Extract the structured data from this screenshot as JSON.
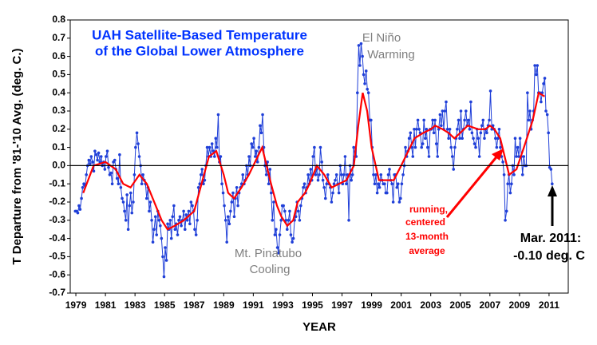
{
  "chart_data": {
    "type": "line",
    "title_lines": [
      "UAH Satellite-Based Temperature",
      "of the Global Lower Atmosphere"
    ],
    "x_label": "YEAR",
    "y_label": "T Departure from '81-'10 Avg. (deg. C.)",
    "annotations": {
      "el_nino": [
        "El Niño",
        "Warming"
      ],
      "pinatubo": [
        "Mt. Pinatubo",
        "Cooling"
      ],
      "running": [
        "running,",
        "centered",
        "13-month",
        "average"
      ],
      "latest": [
        "Mar. 2011:",
        "-0.10 deg. C"
      ]
    },
    "xlim": [
      1978.62,
      2012.3
    ],
    "ylim": [
      -0.7,
      0.8
    ],
    "xticks": [
      1979,
      1981,
      1983,
      1985,
      1987,
      1989,
      1991,
      1993,
      1995,
      1997,
      1999,
      2001,
      2003,
      2005,
      2007,
      2009,
      2011
    ],
    "yticks": [
      0.8,
      0.7,
      0.6,
      0.5,
      0.4,
      0.3,
      0.2,
      0.1,
      {
        "value": 0,
        "label": "0.0"
      },
      -0.1,
      -0.2,
      -0.3,
      -0.4,
      -0.5,
      -0.6,
      -0.7
    ],
    "zero_line": true,
    "series": [
      {
        "name": "monthly",
        "color": "#1f3fd8",
        "markers": true,
        "x": [
          1978.96,
          1979.04,
          1979.13,
          1979.21,
          1979.29,
          1979.38,
          1979.46,
          1979.54,
          1979.63,
          1979.71,
          1979.79,
          1979.88,
          1979.96,
          1980.04,
          1980.13,
          1980.21,
          1980.29,
          1980.38,
          1980.46,
          1980.54,
          1980.63,
          1980.71,
          1980.79,
          1980.88,
          1980.96,
          1981.04,
          1981.13,
          1981.21,
          1981.29,
          1981.38,
          1981.46,
          1981.54,
          1981.63,
          1981.71,
          1981.79,
          1981.88,
          1981.96,
          1982.04,
          1982.13,
          1982.21,
          1982.29,
          1982.38,
          1982.46,
          1982.54,
          1982.63,
          1982.71,
          1982.79,
          1982.88,
          1982.96,
          1983.04,
          1983.13,
          1983.21,
          1983.29,
          1983.38,
          1983.46,
          1983.54,
          1983.63,
          1983.71,
          1983.79,
          1983.88,
          1983.96,
          1984.04,
          1984.13,
          1984.21,
          1984.29,
          1984.38,
          1984.46,
          1984.54,
          1984.63,
          1984.71,
          1984.79,
          1984.88,
          1984.96,
          1985.04,
          1985.13,
          1985.21,
          1985.29,
          1985.38,
          1985.46,
          1985.54,
          1985.63,
          1985.71,
          1985.79,
          1985.88,
          1985.96,
          1986.04,
          1986.13,
          1986.21,
          1986.29,
          1986.38,
          1986.46,
          1986.54,
          1986.63,
          1986.71,
          1986.79,
          1986.88,
          1986.96,
          1987.04,
          1987.13,
          1987.21,
          1987.29,
          1987.38,
          1987.46,
          1987.54,
          1987.63,
          1987.71,
          1987.79,
          1987.88,
          1987.96,
          1988.04,
          1988.13,
          1988.21,
          1988.29,
          1988.38,
          1988.46,
          1988.54,
          1988.63,
          1988.71,
          1988.79,
          1988.88,
          1988.96,
          1989.04,
          1989.13,
          1989.21,
          1989.29,
          1989.38,
          1989.46,
          1989.54,
          1989.63,
          1989.71,
          1989.79,
          1989.88,
          1989.96,
          1990.04,
          1990.13,
          1990.21,
          1990.29,
          1990.38,
          1990.46,
          1990.54,
          1990.63,
          1990.71,
          1990.79,
          1990.88,
          1990.96,
          1991.04,
          1991.13,
          1991.21,
          1991.29,
          1991.38,
          1991.46,
          1991.54,
          1991.63,
          1991.71,
          1991.79,
          1991.88,
          1991.96,
          1992.04,
          1992.13,
          1992.21,
          1992.29,
          1992.38,
          1992.46,
          1992.54,
          1992.63,
          1992.71,
          1992.79,
          1992.88,
          1992.96,
          1993.04,
          1993.13,
          1993.21,
          1993.29,
          1993.38,
          1993.46,
          1993.54,
          1993.63,
          1993.71,
          1993.79,
          1993.88,
          1993.96,
          1994.04,
          1994.13,
          1994.21,
          1994.29,
          1994.38,
          1994.46,
          1994.54,
          1994.63,
          1994.71,
          1994.79,
          1994.88,
          1994.96,
          1995.04,
          1995.13,
          1995.21,
          1995.29,
          1995.38,
          1995.46,
          1995.54,
          1995.63,
          1995.71,
          1995.79,
          1995.88,
          1995.96,
          1996.04,
          1996.13,
          1996.21,
          1996.29,
          1996.38,
          1996.46,
          1996.54,
          1996.63,
          1996.71,
          1996.79,
          1996.88,
          1996.96,
          1997.04,
          1997.13,
          1997.21,
          1997.29,
          1997.38,
          1997.46,
          1997.54,
          1997.63,
          1997.71,
          1997.79,
          1997.88,
          1997.96,
          1998.04,
          1998.13,
          1998.21,
          1998.29,
          1998.38,
          1998.46,
          1998.54,
          1998.63,
          1998.71,
          1998.79,
          1998.88,
          1998.96,
          1999.04,
          1999.13,
          1999.21,
          1999.29,
          1999.38,
          1999.46,
          1999.54,
          1999.63,
          1999.71,
          1999.79,
          1999.88,
          1999.96,
          2000.04,
          2000.13,
          2000.21,
          2000.29,
          2000.38,
          2000.46,
          2000.54,
          2000.63,
          2000.71,
          2000.79,
          2000.88,
          2000.96,
          2001.04,
          2001.13,
          2001.21,
          2001.29,
          2001.38,
          2001.46,
          2001.54,
          2001.63,
          2001.71,
          2001.79,
          2001.88,
          2001.96,
          2002.04,
          2002.13,
          2002.21,
          2002.29,
          2002.38,
          2002.46,
          2002.54,
          2002.63,
          2002.71,
          2002.79,
          2002.88,
          2002.96,
          2003.04,
          2003.13,
          2003.21,
          2003.29,
          2003.38,
          2003.46,
          2003.54,
          2003.63,
          2003.71,
          2003.79,
          2003.88,
          2003.96,
          2004.04,
          2004.13,
          2004.21,
          2004.29,
          2004.38,
          2004.46,
          2004.54,
          2004.63,
          2004.71,
          2004.79,
          2004.88,
          2004.96,
          2005.04,
          2005.13,
          2005.21,
          2005.29,
          2005.38,
          2005.46,
          2005.54,
          2005.63,
          2005.71,
          2005.79,
          2005.88,
          2005.96,
          2006.04,
          2006.13,
          2006.21,
          2006.29,
          2006.38,
          2006.46,
          2006.54,
          2006.63,
          2006.71,
          2006.79,
          2006.88,
          2006.96,
          2007.04,
          2007.13,
          2007.21,
          2007.29,
          2007.38,
          2007.46,
          2007.54,
          2007.63,
          2007.71,
          2007.79,
          2007.88,
          2007.96,
          2008.04,
          2008.13,
          2008.21,
          2008.29,
          2008.38,
          2008.46,
          2008.54,
          2008.63,
          2008.71,
          2008.79,
          2008.88,
          2008.96,
          2009.04,
          2009.13,
          2009.21,
          2009.29,
          2009.38,
          2009.46,
          2009.54,
          2009.63,
          2009.71,
          2009.79,
          2009.88,
          2009.96,
          2010.04,
          2010.13,
          2010.21,
          2010.29,
          2010.38,
          2010.46,
          2010.54,
          2010.63,
          2010.71,
          2010.79,
          2010.88,
          2010.96,
          2011.04,
          2011.13,
          2011.21
        ],
        "values": [
          -0.25,
          -0.25,
          -0.26,
          -0.22,
          -0.24,
          -0.18,
          -0.12,
          -0.1,
          -0.11,
          -0.05,
          0.0,
          0.03,
          0.01,
          0.05,
          0.02,
          -0.03,
          0.08,
          0.06,
          0.03,
          0.07,
          0.02,
          0.05,
          0.0,
          0.02,
          -0.02,
          0.05,
          0.08,
          -0.01,
          -0.05,
          -0.04,
          -0.1,
          0.02,
          0.03,
          -0.02,
          -0.07,
          -0.1,
          0.06,
          -0.12,
          -0.18,
          -0.2,
          -0.25,
          -0.3,
          -0.16,
          -0.35,
          -0.22,
          -0.15,
          -0.26,
          -0.2,
          -0.05,
          0.1,
          0.18,
          0.12,
          0.05,
          0.0,
          -0.1,
          -0.05,
          -0.08,
          -0.1,
          -0.18,
          -0.12,
          -0.25,
          -0.2,
          -0.3,
          -0.42,
          -0.35,
          -0.28,
          -0.38,
          -0.25,
          -0.3,
          -0.33,
          -0.4,
          -0.5,
          -0.61,
          -0.45,
          -0.52,
          -0.32,
          -0.35,
          -0.3,
          -0.4,
          -0.28,
          -0.22,
          -0.35,
          -0.32,
          -0.38,
          -0.3,
          -0.28,
          -0.33,
          -0.3,
          -0.25,
          -0.35,
          -0.27,
          -0.3,
          -0.25,
          -0.32,
          -0.2,
          -0.22,
          -0.25,
          -0.35,
          -0.38,
          -0.3,
          -0.12,
          -0.1,
          -0.05,
          -0.02,
          -0.1,
          -0.08,
          0.0,
          0.1,
          0.05,
          0.1,
          0.05,
          0.12,
          0.08,
          0.05,
          0.15,
          0.1,
          0.28,
          0.02,
          0.05,
          -0.1,
          -0.15,
          -0.22,
          -0.3,
          -0.42,
          -0.28,
          -0.32,
          -0.25,
          -0.2,
          -0.15,
          -0.28,
          -0.18,
          -0.12,
          -0.22,
          -0.15,
          -0.12,
          -0.1,
          -0.05,
          -0.1,
          -0.08,
          0.0,
          -0.05,
          0.05,
          0.0,
          0.12,
          0.1,
          0.15,
          0.05,
          0.08,
          0.02,
          0.1,
          0.22,
          0.18,
          0.28,
          0.1,
          0.0,
          -0.05,
          0.02,
          -0.1,
          -0.02,
          -0.15,
          -0.3,
          -0.2,
          -0.38,
          -0.35,
          -0.45,
          -0.48,
          -0.38,
          -0.3,
          -0.22,
          -0.22,
          -0.25,
          -0.3,
          -0.35,
          -0.3,
          -0.25,
          -0.38,
          -0.42,
          -0.4,
          -0.3,
          -0.28,
          -0.2,
          -0.25,
          -0.3,
          -0.22,
          -0.18,
          -0.12,
          -0.1,
          -0.15,
          -0.12,
          -0.05,
          -0.1,
          -0.02,
          -0.08,
          0.05,
          0.1,
          -0.05,
          -0.02,
          -0.08,
          -0.05,
          0.1,
          0.02,
          -0.08,
          -0.12,
          -0.18,
          -0.1,
          -0.05,
          -0.1,
          -0.12,
          -0.2,
          -0.15,
          -0.1,
          -0.08,
          -0.05,
          -0.1,
          -0.15,
          0.0,
          -0.05,
          -0.1,
          -0.05,
          0.05,
          -0.1,
          -0.05,
          -0.3,
          0.0,
          -0.08,
          -0.05,
          0.1,
          0.05,
          0.05,
          0.4,
          0.66,
          0.55,
          0.67,
          0.6,
          0.5,
          0.45,
          0.52,
          0.42,
          0.4,
          0.25,
          0.25,
          0.1,
          -0.05,
          -0.1,
          -0.05,
          -0.15,
          -0.1,
          -0.12,
          -0.05,
          -0.08,
          -0.1,
          -0.1,
          -0.15,
          -0.15,
          -0.05,
          -0.02,
          -0.08,
          -0.1,
          -0.2,
          -0.05,
          -0.05,
          -0.12,
          -0.1,
          -0.2,
          -0.18,
          -0.1,
          -0.05,
          0.0,
          0.1,
          0.05,
          0.08,
          0.15,
          0.18,
          0.1,
          0.05,
          0.2,
          0.1,
          0.2,
          0.25,
          0.2,
          0.18,
          0.1,
          0.12,
          0.25,
          0.15,
          0.2,
          0.1,
          0.05,
          0.2,
          0.2,
          0.25,
          0.18,
          0.25,
          0.12,
          0.05,
          0.2,
          0.28,
          0.22,
          0.3,
          0.2,
          0.3,
          0.35,
          0.2,
          0.15,
          0.2,
          0.1,
          0.05,
          -0.02,
          0.1,
          0.15,
          0.2,
          0.25,
          0.15,
          0.3,
          0.15,
          0.2,
          0.25,
          0.3,
          0.22,
          0.25,
          0.2,
          0.35,
          0.18,
          0.15,
          0.12,
          0.1,
          0.2,
          0.15,
          0.05,
          0.18,
          0.22,
          0.25,
          0.15,
          0.2,
          0.18,
          0.22,
          0.25,
          0.41,
          0.2,
          0.22,
          0.2,
          0.15,
          0.1,
          0.15,
          0.2,
          0.1,
          0.05,
          0.02,
          -0.05,
          -0.3,
          -0.25,
          -0.1,
          -0.05,
          -0.15,
          -0.1,
          0.0,
          -0.05,
          0.15,
          0.05,
          0.1,
          0.05,
          0.15,
          0.05,
          -0.05,
          0.05,
          0.0,
          0.0,
          0.4,
          0.25,
          0.3,
          0.2,
          0.25,
          0.3,
          0.55,
          0.5,
          0.55,
          0.4,
          0.4,
          0.35,
          0.4,
          0.45,
          0.48,
          0.3,
          0.28,
          0.18,
          -0.01,
          -0.02,
          -0.1
        ]
      },
      {
        "name": "running, centered 13-month average",
        "color": "#ff0000",
        "markers": false,
        "x": [
          1979.5,
          1980.2,
          1981.0,
          1981.7,
          1982.2,
          1982.7,
          1983.3,
          1983.8,
          1984.3,
          1984.8,
          1985.2,
          1985.7,
          1986.3,
          1987.0,
          1987.5,
          1988.0,
          1988.5,
          1989.0,
          1989.3,
          1989.7,
          1990.2,
          1990.7,
          1991.3,
          1991.6,
          1992.2,
          1992.6,
          1992.9,
          1993.3,
          1993.7,
          1994.0,
          1994.5,
          1994.8,
          1995.3,
          1995.8,
          1996.3,
          1996.8,
          1997.3,
          1997.8,
          1998.1,
          1998.4,
          1998.7,
          1999.0,
          1999.5,
          2000.0,
          2000.5,
          2001.0,
          2001.3,
          2001.9,
          2002.5,
          2003.0,
          2003.3,
          2003.8,
          2004.2,
          2004.6,
          2005.0,
          2005.5,
          2006.2,
          2006.7,
          2007.0,
          2007.3,
          2007.7,
          2008.0,
          2008.3,
          2008.8,
          2009.3,
          2009.9,
          2010.3,
          2010.7
        ],
        "values": [
          -0.15,
          0.0,
          0.02,
          -0.02,
          -0.1,
          -0.12,
          -0.05,
          -0.1,
          -0.2,
          -0.3,
          -0.35,
          -0.33,
          -0.3,
          -0.25,
          -0.1,
          0.05,
          0.08,
          -0.05,
          -0.15,
          -0.18,
          -0.12,
          -0.05,
          0.05,
          0.1,
          -0.1,
          -0.22,
          -0.28,
          -0.33,
          -0.3,
          -0.2,
          -0.15,
          -0.1,
          0.0,
          -0.05,
          -0.12,
          -0.1,
          -0.08,
          0.0,
          0.22,
          0.4,
          0.3,
          0.1,
          -0.08,
          -0.08,
          -0.08,
          0.0,
          0.05,
          0.15,
          0.18,
          0.2,
          0.22,
          0.2,
          0.18,
          0.15,
          0.18,
          0.22,
          0.2,
          0.2,
          0.22,
          0.2,
          0.15,
          0.05,
          -0.05,
          -0.02,
          0.1,
          0.25,
          0.4,
          0.38
        ]
      }
    ]
  }
}
